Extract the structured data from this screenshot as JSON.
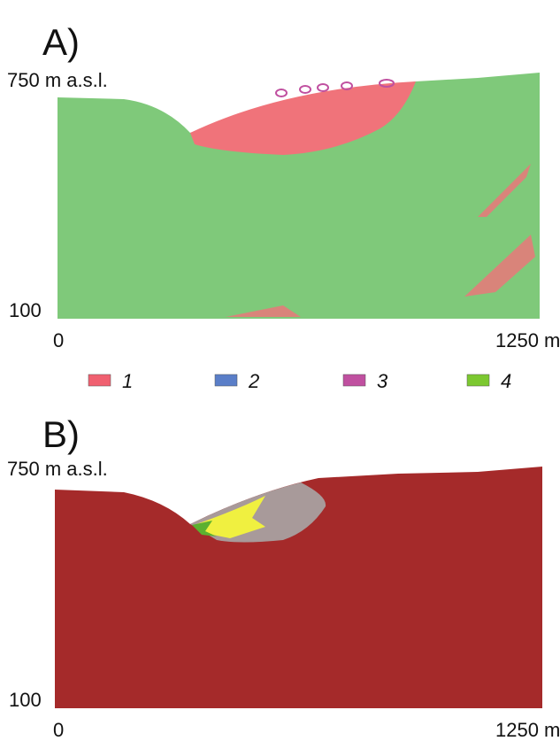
{
  "panels": [
    {
      "label": "A)",
      "y_top": "750 m a.s.l.",
      "y_bottom": "100",
      "x_left": "0",
      "x_right": "1250 m"
    },
    {
      "label": "B)",
      "y_top": "750 m a.s.l.",
      "y_bottom": "100",
      "x_left": "0",
      "x_right": "1250 m"
    }
  ],
  "legend": [
    {
      "label": "1",
      "color": "#f06070"
    },
    {
      "label": "2",
      "color": "#5a7ec8"
    },
    {
      "label": "3",
      "color": "#c050a0"
    },
    {
      "label": "4",
      "color": "#7cc830"
    }
  ]
}
